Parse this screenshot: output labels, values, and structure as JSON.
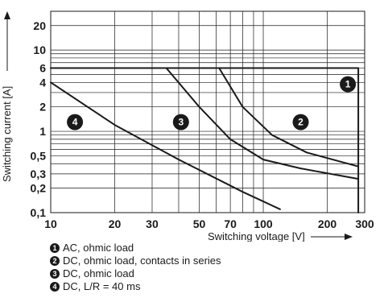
{
  "chart_data": {
    "type": "line",
    "xlabel": "Switching voltage [V]",
    "ylabel": "Switching current [A]",
    "x_scale": "log",
    "y_scale": "log",
    "xlim": [
      10,
      300
    ],
    "ylim": [
      0.1,
      30
    ],
    "grid": true,
    "xticks": [
      10,
      20,
      30,
      50,
      70,
      100,
      200,
      300
    ],
    "xtick_labels": [
      "10",
      "20",
      "30",
      "50",
      "70",
      "100",
      "200",
      "300"
    ],
    "yticks": [
      0.1,
      0.2,
      0.3,
      0.5,
      1,
      2,
      4,
      6,
      10,
      20
    ],
    "ytick_labels": [
      "0,1",
      "0,2",
      "0,3",
      "0,5",
      "1",
      "2",
      "4",
      "6",
      "10",
      "20"
    ],
    "series": [
      {
        "id": "1",
        "label_num": "1",
        "x": [
          10,
          280,
          280
        ],
        "y": [
          6,
          6,
          0.1
        ]
      },
      {
        "id": "2",
        "label_num": "2",
        "x": [
          62,
          80,
          110,
          160,
          280
        ],
        "y": [
          6,
          2,
          0.9,
          0.55,
          0.37
        ]
      },
      {
        "id": "3",
        "label_num": "3",
        "x": [
          35,
          50,
          70,
          100,
          150,
          280
        ],
        "y": [
          6,
          2,
          0.8,
          0.45,
          0.35,
          0.26
        ]
      },
      {
        "id": "4",
        "label_num": "4",
        "x": [
          10,
          20,
          40,
          80,
          120
        ],
        "y": [
          4,
          1.2,
          0.45,
          0.18,
          0.11
        ]
      }
    ],
    "annotations": [
      {
        "num": "1",
        "x": 250,
        "y": 3.8
      },
      {
        "num": "2",
        "x": 150,
        "y": 1.3
      },
      {
        "num": "3",
        "x": 41,
        "y": 1.3
      },
      {
        "num": "4",
        "x": 13,
        "y": 1.3
      }
    ]
  },
  "legend": [
    {
      "num": "1",
      "text": "AC, ohmic load"
    },
    {
      "num": "2",
      "text": "DC, ohmic load, contacts in series"
    },
    {
      "num": "3",
      "text": "DC, ohmic load"
    },
    {
      "num": "4",
      "text": "DC, L/R = 40 ms"
    }
  ],
  "colors": {
    "ink": "#1a1a1a",
    "grid": "#1a1a1a",
    "background": "#ffffff"
  }
}
